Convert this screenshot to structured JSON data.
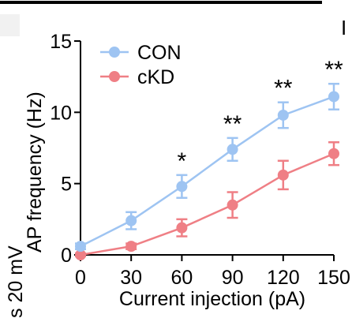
{
  "crop": {
    "left_label": "s 20 mV",
    "right_label": "I"
  },
  "chart_data": {
    "type": "line",
    "title": "",
    "xlabel": "Current injection (pA)",
    "ylabel": "AP frequency (Hz)",
    "x": [
      0,
      30,
      60,
      90,
      120,
      150
    ],
    "xticks": [
      "0",
      "30",
      "60",
      "90",
      "120",
      "150"
    ],
    "yticks": [
      "0",
      "5",
      "10",
      "15"
    ],
    "xlim": [
      0,
      150
    ],
    "ylim": [
      0,
      15
    ],
    "grid": false,
    "legend_position": "top-left",
    "series": [
      {
        "name": "CON",
        "color": "#9ec4f2",
        "values": [
          0.6,
          2.4,
          4.8,
          7.4,
          9.8,
          11.1
        ],
        "errors": [
          0.2,
          0.6,
          0.8,
          0.8,
          0.9,
          0.9
        ]
      },
      {
        "name": "cKD",
        "color": "#ef7f85",
        "values": [
          0.0,
          0.6,
          1.9,
          3.5,
          5.6,
          7.1
        ],
        "errors": [
          0.1,
          0.2,
          0.6,
          0.9,
          1.0,
          0.8
        ]
      }
    ],
    "annotations": [
      {
        "x": 60,
        "text": "*"
      },
      {
        "x": 90,
        "text": "**"
      },
      {
        "x": 120,
        "text": "**"
      },
      {
        "x": 150,
        "text": "**"
      }
    ]
  }
}
